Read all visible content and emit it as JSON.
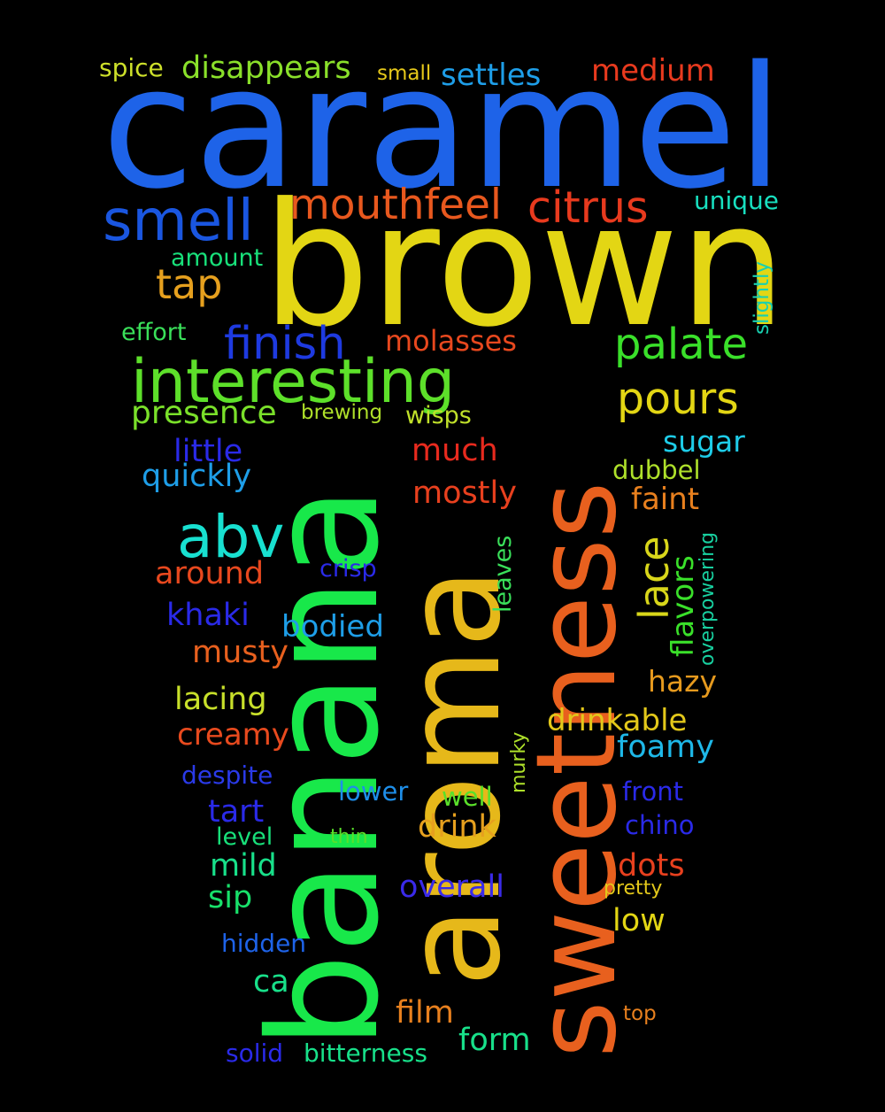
{
  "background_color": "#000000",
  "words": [
    {
      "text": "caramel",
      "color": "#1e63e8"
    },
    {
      "text": "brown",
      "color": "#e3d614"
    },
    {
      "text": "banana",
      "color": "#18e84a"
    },
    {
      "text": "aroma",
      "color": "#e6b81a"
    },
    {
      "text": "sweetness",
      "color": "#e8601e"
    },
    {
      "text": "interesting",
      "color": "#5de02a"
    },
    {
      "text": "smell",
      "color": "#1a56e0"
    },
    {
      "text": "mouthfeel",
      "color": "#e8581e"
    },
    {
      "text": "citrus",
      "color": "#e83a1e"
    },
    {
      "text": "abv",
      "color": "#18e0d0"
    },
    {
      "text": "finish",
      "color": "#1e3ae0"
    },
    {
      "text": "palate",
      "color": "#3ae02a"
    },
    {
      "text": "pours",
      "color": "#e3d614"
    },
    {
      "text": "tap",
      "color": "#e6a01e"
    },
    {
      "text": "molasses",
      "color": "#e8481e"
    },
    {
      "text": "presence",
      "color": "#7ae02a"
    },
    {
      "text": "medium",
      "color": "#e83a1e"
    },
    {
      "text": "settles",
      "color": "#1e9ee8"
    },
    {
      "text": "disappears",
      "color": "#8ae02a"
    },
    {
      "text": "spice",
      "color": "#cde02a"
    },
    {
      "text": "small",
      "color": "#e6c81a"
    },
    {
      "text": "unique",
      "color": "#18e0c0"
    },
    {
      "text": "slightly",
      "color": "#18d0b0"
    },
    {
      "text": "amount",
      "color": "#18e07a"
    },
    {
      "text": "effort",
      "color": "#3ae05a"
    },
    {
      "text": "brewing",
      "color": "#aee02a"
    },
    {
      "text": "wisps",
      "color": "#c0e02a"
    },
    {
      "text": "little",
      "color": "#2a2ae8"
    },
    {
      "text": "much",
      "color": "#e82a1e"
    },
    {
      "text": "sugar",
      "color": "#1ecce8"
    },
    {
      "text": "quickly",
      "color": "#1e9ee8"
    },
    {
      "text": "dubbel",
      "color": "#aee02a"
    },
    {
      "text": "mostly",
      "color": "#e8401e"
    },
    {
      "text": "faint",
      "color": "#e8801e"
    },
    {
      "text": "leaves",
      "color": "#3ae05a"
    },
    {
      "text": "lace",
      "color": "#d8d61a"
    },
    {
      "text": "flavors",
      "color": "#3ae02a"
    },
    {
      "text": "overpowering",
      "color": "#18d0a0"
    },
    {
      "text": "around",
      "color": "#e8481e"
    },
    {
      "text": "crisp",
      "color": "#2a2ae8"
    },
    {
      "text": "khaki",
      "color": "#2a2ae8"
    },
    {
      "text": "bodied",
      "color": "#1e9ee8"
    },
    {
      "text": "musty",
      "color": "#e8601e"
    },
    {
      "text": "hazy",
      "color": "#e69a1e"
    },
    {
      "text": "lacing",
      "color": "#c8e02a"
    },
    {
      "text": "drinkable",
      "color": "#e3c81a"
    },
    {
      "text": "creamy",
      "color": "#e84a1e"
    },
    {
      "text": "foamy",
      "color": "#1eb8e8"
    },
    {
      "text": "despite",
      "color": "#2a3ae8"
    },
    {
      "text": "murky",
      "color": "#aee02a"
    },
    {
      "text": "lower",
      "color": "#1e8ee8"
    },
    {
      "text": "front",
      "color": "#2a2ae8"
    },
    {
      "text": "well",
      "color": "#5ae02a"
    },
    {
      "text": "tart",
      "color": "#2a2ae8"
    },
    {
      "text": "chino",
      "color": "#2a2ae8"
    },
    {
      "text": "level",
      "color": "#18e07a"
    },
    {
      "text": "thin",
      "color": "#5ae02a"
    },
    {
      "text": "drink",
      "color": "#e6a01e"
    },
    {
      "text": "mild",
      "color": "#18e08a"
    },
    {
      "text": "dots",
      "color": "#e8401e"
    },
    {
      "text": "overall",
      "color": "#3a2ae8"
    },
    {
      "text": "pretty",
      "color": "#e3c81a"
    },
    {
      "text": "sip",
      "color": "#18e06a"
    },
    {
      "text": "low",
      "color": "#e3d614"
    },
    {
      "text": "hidden",
      "color": "#1e63e8"
    },
    {
      "text": "ca",
      "color": "#18e08a"
    },
    {
      "text": "film",
      "color": "#e8801e"
    },
    {
      "text": "top",
      "color": "#e8801e"
    },
    {
      "text": "form",
      "color": "#18e08a"
    },
    {
      "text": "solid",
      "color": "#2a2ae8"
    },
    {
      "text": "bitterness",
      "color": "#18e08a"
    }
  ]
}
